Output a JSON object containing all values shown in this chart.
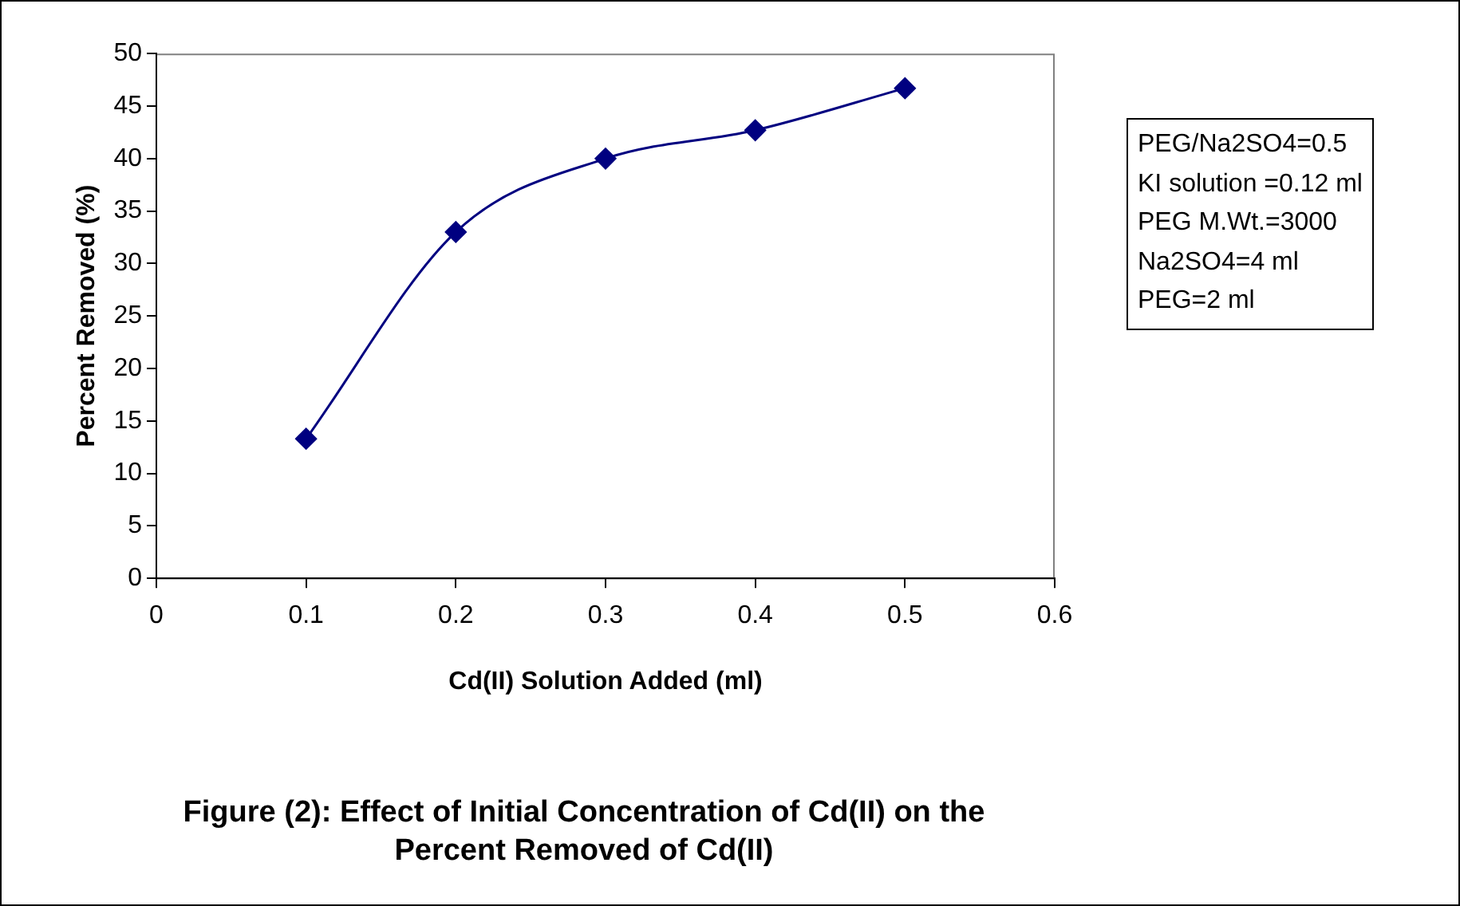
{
  "chart_data": {
    "type": "line",
    "title": "Figure (2): Effect of Initial Concentration of Cd(II) on the Percent Removed of Cd(II)",
    "xlabel": "Cd(II) Solution Added (ml)",
    "ylabel": "Percent Removed (%)",
    "annotations": [
      "PEG/Na2SO4=0.5",
      "KI solution =0.12 ml",
      "PEG M.Wt.=3000",
      "Na2SO4=4 ml",
      "PEG=2 ml"
    ],
    "x": [
      0.1,
      0.2,
      0.3,
      0.4,
      0.5
    ],
    "series": [
      {
        "color": "#000080",
        "values": [
          13.3,
          33.0,
          40.0,
          42.7,
          46.7
        ]
      }
    ],
    "xlim": [
      0,
      0.6
    ],
    "xticks": [
      0,
      0.1,
      0.2,
      0.3,
      0.4,
      0.5,
      0.6
    ],
    "ylim": [
      0,
      50
    ],
    "yticks": [
      0,
      5,
      10,
      15,
      20,
      25,
      30,
      35,
      40,
      45,
      50
    ],
    "marker": "diamond",
    "line_style": "solid"
  }
}
